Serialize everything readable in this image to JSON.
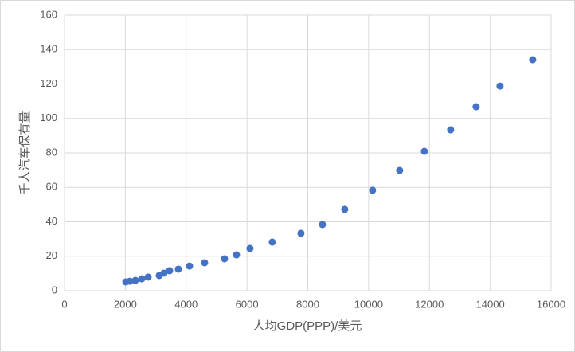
{
  "chart_data": {
    "type": "scatter",
    "x_label": "人均GDP(PPP)/美元",
    "y_label": "千人汽车保有量",
    "series": [
      {
        "color": "#4472c4",
        "x": [
          2016,
          2147,
          2330,
          2540,
          2749,
          3115,
          3272,
          3456,
          3744,
          4110,
          4607,
          5262,
          5654,
          6099,
          6832,
          7775,
          8482,
          9215,
          10131,
          11021,
          11833,
          12697,
          13535,
          14321,
          15395
        ],
        "values": [
          5.1,
          5.5,
          6.0,
          6.9,
          7.9,
          8.8,
          10.2,
          11.6,
          12.5,
          14.3,
          16.2,
          18.5,
          20.8,
          24.5,
          28.2,
          33.3,
          38.4,
          47.2,
          58.3,
          69.8,
          80.9,
          93.4,
          106.8,
          118.8,
          134.1
        ]
      }
    ],
    "xlim": [
      0,
      16000
    ],
    "xticks": [
      0,
      2000,
      4000,
      6000,
      8000,
      10000,
      12000,
      14000,
      16000
    ],
    "ylim": [
      0,
      160
    ],
    "yticks": [
      0,
      20,
      40,
      60,
      80,
      100,
      120,
      140,
      160
    ],
    "grid": true
  }
}
